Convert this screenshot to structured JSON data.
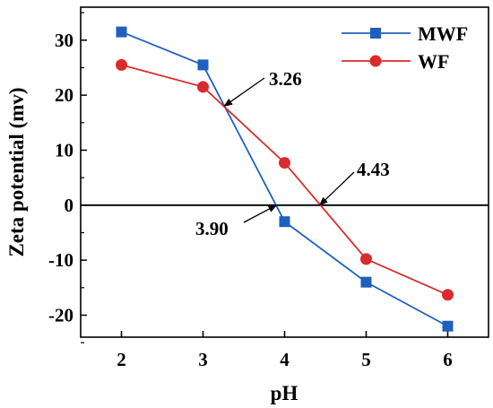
{
  "chart_data": {
    "type": "line",
    "xlabel": "pH",
    "ylabel": "Zeta potential (mv)",
    "xlim": [
      1.5,
      6.5
    ],
    "ylim": [
      -24,
      36
    ],
    "x_ticks": [
      2,
      3,
      4,
      5,
      6
    ],
    "y_ticks": [
      -20,
      -10,
      0,
      10,
      20,
      30
    ],
    "zero_line": true,
    "legend_position": "top-right",
    "series": [
      {
        "name": "MWF",
        "color": "#1f5fbf",
        "marker": "square",
        "x": [
          2,
          3,
          4,
          5,
          6
        ],
        "y": [
          31.5,
          25.5,
          -3.0,
          -14.0,
          -22.0
        ]
      },
      {
        "name": "WF",
        "color": "#d92b2b",
        "marker": "circle",
        "x": [
          2,
          3,
          4,
          5,
          6
        ],
        "y": [
          25.5,
          21.5,
          7.7,
          -9.8,
          -16.3
        ]
      }
    ],
    "annotations": [
      {
        "text": "3.26",
        "x": 3.26,
        "y": 18.0
      },
      {
        "text": "4.43",
        "x": 4.43,
        "y": 0
      },
      {
        "text": "3.90",
        "x": 3.9,
        "y": 0
      }
    ]
  }
}
